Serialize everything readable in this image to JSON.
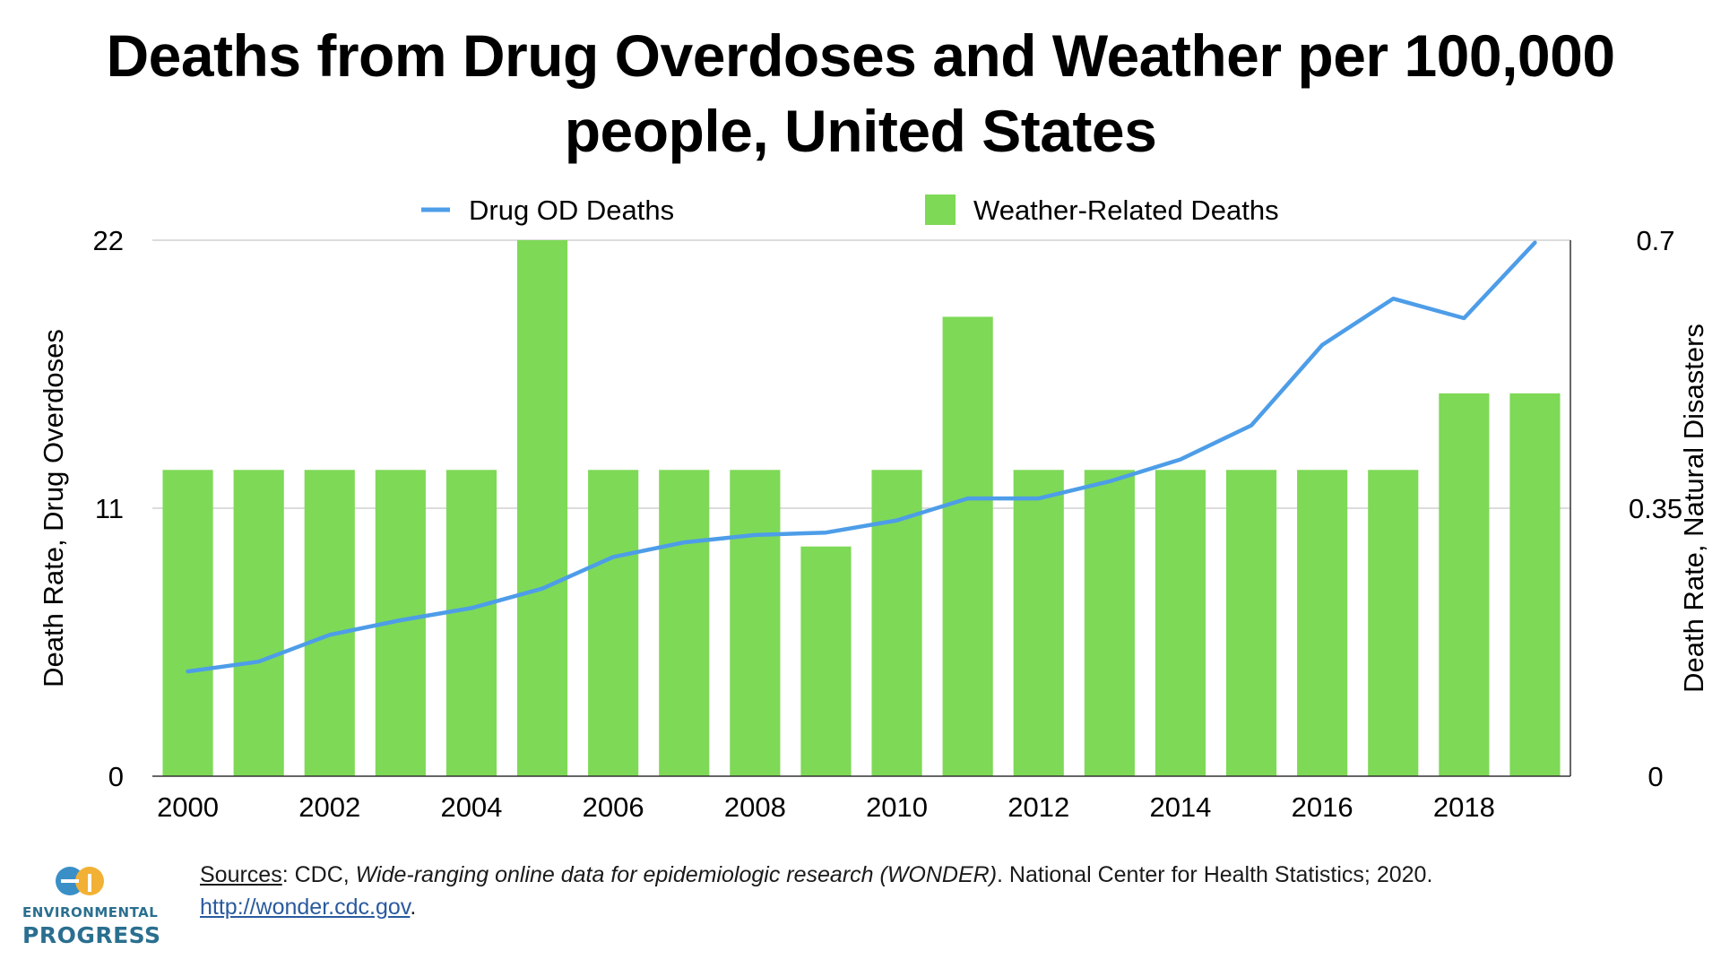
{
  "chart_data": {
    "type": "bar",
    "title": "Deaths from Drug Overdoses and Weather per 100,000 people, United States",
    "x": [
      2000,
      2001,
      2002,
      2003,
      2004,
      2005,
      2006,
      2007,
      2008,
      2009,
      2010,
      2011,
      2012,
      2013,
      2014,
      2015,
      2016,
      2017,
      2018,
      2019
    ],
    "x_tick_labels": [
      "2000",
      "2002",
      "2004",
      "2006",
      "2008",
      "2010",
      "2012",
      "2014",
      "2016",
      "2018"
    ],
    "series": [
      {
        "name": "Weather-Related Deaths",
        "type": "bar",
        "axis": "right",
        "color": "#7ed957",
        "values": [
          0.4,
          0.4,
          0.4,
          0.4,
          0.4,
          0.7,
          0.4,
          0.4,
          0.4,
          0.3,
          0.4,
          0.6,
          0.4,
          0.4,
          0.4,
          0.4,
          0.4,
          0.4,
          0.5,
          0.5
        ]
      },
      {
        "name": "Drug OD Deaths",
        "type": "line",
        "axis": "left",
        "color": "#4d9de8",
        "values": [
          4.3,
          4.7,
          5.8,
          6.4,
          6.9,
          7.7,
          9.0,
          9.6,
          9.9,
          10.0,
          10.5,
          11.4,
          11.4,
          12.1,
          13.0,
          14.4,
          17.7,
          19.6,
          18.8,
          21.9
        ]
      }
    ],
    "y_left": {
      "label": "Death Rate, Drug Overdoses",
      "ticks": [
        "0",
        "11",
        "22"
      ],
      "ylim": [
        0,
        22
      ]
    },
    "y_right": {
      "label": "Death Rate, Natural Disasters",
      "ticks": [
        "0",
        "0.35",
        "0.7"
      ],
      "ylim": [
        0,
        0.7
      ]
    },
    "legend_position": "top",
    "grid": true
  },
  "sources": {
    "label": "Sources",
    "text1": ": CDC, ",
    "title": "Wide-ranging online data for epidemiologic research (WONDER)",
    "text2": ". National Center for Health Statistics; 2020. ",
    "link": "http://wonder.cdc.gov",
    "end": "."
  },
  "logo": {
    "line1": "ENVIRONMENTAL",
    "line2": "PROGRESS",
    "colors": {
      "blue": "#3a8fc7",
      "yellow": "#f2b134"
    }
  }
}
